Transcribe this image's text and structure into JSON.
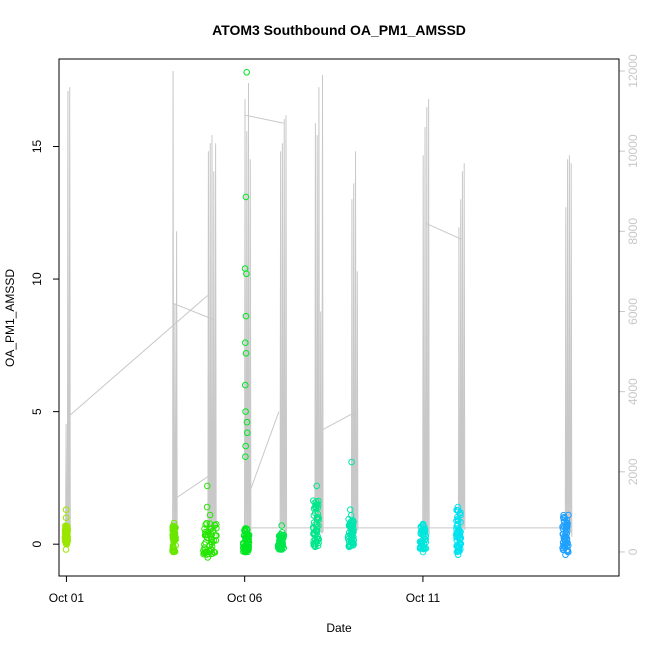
{
  "chart_data": {
    "type": "scatter",
    "title": "ATOM3 Southbound OA_PM1_AMSSD",
    "xlabel": "Date",
    "ylabel": "OA_PM1_AMSSD",
    "xlim": [
      "2016-09-30T19:00",
      "2016-10-16T12:00"
    ],
    "ylim": [
      -1.2,
      18.3
    ],
    "x_ticks": [
      {
        "label": "Oct 01",
        "date": "2016-10-01"
      },
      {
        "label": "Oct 06",
        "date": "2016-10-06"
      },
      {
        "label": "Oct 11",
        "date": "2016-10-11"
      }
    ],
    "y_ticks": [
      0,
      5,
      10,
      15
    ],
    "secondary_axis": {
      "position": "right",
      "color": "#c8c8c8",
      "ylim": [
        -600,
        12300
      ],
      "ticks": [
        0,
        2000,
        4000,
        6000,
        8000,
        10000,
        12000
      ]
    },
    "grid": false,
    "legend": "none",
    "clusters": [
      {
        "center": "2016-10-01T00:00",
        "width_h": 2,
        "color": "#9be600",
        "y_main": [
          0.0,
          0.7
        ],
        "outliers": [
          1.0,
          1.3,
          -0.2
        ]
      },
      {
        "center": "2016-10-04T00:30",
        "width_h": 2,
        "color": "#6ae600",
        "y_main": [
          -0.3,
          0.7
        ],
        "outliers": [
          0.8
        ]
      },
      {
        "center": "2016-10-05T00:30",
        "width_h": 9,
        "color": "#26e600",
        "y_main": [
          -0.4,
          0.8
        ],
        "outliers": [
          1.4,
          2.2,
          1.1,
          -0.5
        ]
      },
      {
        "center": "2016-10-06T01:00",
        "width_h": 4,
        "color": "#00e620",
        "y_main": [
          -0.3,
          0.6
        ],
        "outliers": [
          17.8,
          13.1,
          10.4,
          10.2,
          8.6,
          7.6,
          7.2,
          6.0,
          5.0,
          4.6,
          4.2,
          3.7,
          3.3
        ]
      },
      {
        "center": "2016-10-07T00:30",
        "width_h": 4,
        "color": "#00e64c",
        "y_main": [
          -0.2,
          0.5
        ],
        "outliers": [
          0.7
        ]
      },
      {
        "center": "2016-10-08T00:00",
        "width_h": 4,
        "color": "#00e68a",
        "y_main": [
          -0.1,
          1.8
        ],
        "outliers": [
          2.2
        ]
      },
      {
        "center": "2016-10-08T23:30",
        "width_h": 4,
        "color": "#00e6ae",
        "y_main": [
          -0.1,
          1.1
        ],
        "outliers": [
          3.1,
          1.3
        ]
      },
      {
        "center": "2016-10-11T00:00",
        "width_h": 4,
        "color": "#00e6dc",
        "y_main": [
          -0.2,
          0.8
        ],
        "outliers": [
          -0.3
        ]
      },
      {
        "center": "2016-10-12T00:00",
        "width_h": 3,
        "color": "#00e2f0",
        "y_main": [
          -0.3,
          1.3
        ],
        "outliers": [
          1.4,
          -0.4
        ]
      },
      {
        "center": "2016-10-15T00:00",
        "width_h": 4,
        "color": "#1fa0ff",
        "y_main": [
          -0.3,
          1.1
        ],
        "outliers": [
          -0.4
        ]
      }
    ],
    "secondary_line": {
      "color": "#c8c8c8",
      "spikes": [
        {
          "center": "2016-10-01T01:00",
          "peaks": [
            3200,
            11500,
            11600
          ]
        },
        {
          "center": "2016-10-04T01:00",
          "peaks": [
            12000,
            6200,
            8000
          ]
        },
        {
          "center": "2016-10-05T02:00",
          "peaks": [
            10000,
            10200,
            10400,
            9500,
            10200
          ]
        },
        {
          "center": "2016-10-06T02:00",
          "peaks": [
            11300,
            10500,
            11700,
            9800
          ]
        },
        {
          "center": "2016-10-07T02:00",
          "peaks": [
            10000,
            10200,
            10800,
            10900
          ]
        },
        {
          "center": "2016-10-08T02:00",
          "peaks": [
            10700,
            10400,
            11600,
            6000,
            11900
          ]
        },
        {
          "center": "2016-10-09T02:00",
          "peaks": [
            8800,
            9200,
            10000,
            7000
          ]
        },
        {
          "center": "2016-10-11T02:00",
          "peaks": [
            9900,
            10600,
            11100,
            11300
          ]
        },
        {
          "center": "2016-10-12T02:00",
          "peaks": [
            8100,
            8800,
            9500,
            9700
          ]
        },
        {
          "center": "2016-10-15T02:00",
          "peaks": [
            8600,
            9800,
            9900,
            9700
          ]
        }
      ],
      "connectors": [
        {
          "from": [
            "2016-10-01T02:00",
            3400
          ],
          "to": [
            "2016-10-04T23:00",
            6400
          ]
        },
        {
          "from": [
            "2016-10-04T00:00",
            6200
          ],
          "to": [
            "2016-10-05T03:00",
            5800
          ]
        },
        {
          "from": [
            "2016-10-04T00:00",
            1300
          ],
          "to": [
            "2016-10-05T00:00",
            1900
          ]
        },
        {
          "from": [
            "2016-10-06T00:30",
            600
          ],
          "to": [
            "2016-10-15T00:00",
            600
          ]
        },
        {
          "from": [
            "2016-10-06T00:00",
            10900
          ],
          "to": [
            "2016-10-07T02:00",
            10700
          ]
        },
        {
          "from": [
            "2016-10-06T00:30",
            1200
          ],
          "to": [
            "2016-10-06T23:00",
            3500
          ]
        },
        {
          "from": [
            "2016-10-08T02:00",
            3000
          ],
          "to": [
            "2016-10-09T03:00",
            3500
          ]
        },
        {
          "from": [
            "2016-10-11T02:00",
            8200
          ],
          "to": [
            "2016-10-12T02:00",
            7800
          ]
        }
      ]
    }
  }
}
